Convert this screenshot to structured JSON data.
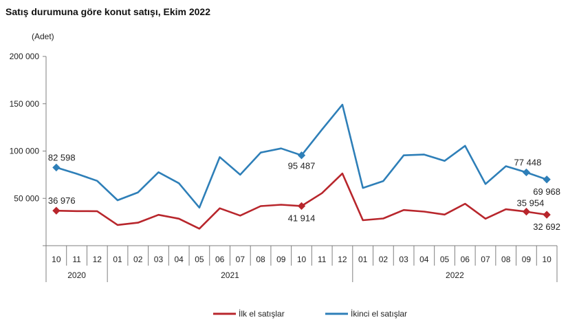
{
  "chart_data": {
    "type": "line",
    "title": "Satış durumuna göre konut satışı, Ekim 2022",
    "ylabel": "(Adet)",
    "xlabel": "",
    "ylim": [
      0,
      200000
    ],
    "y_ticks": [
      0,
      50000,
      100000,
      150000,
      200000
    ],
    "y_tick_labels": [
      "",
      "50 000",
      "100 000",
      "150 000",
      "200 000"
    ],
    "categories": [
      "10",
      "11",
      "12",
      "01",
      "02",
      "03",
      "04",
      "05",
      "06",
      "07",
      "08",
      "09",
      "10",
      "11",
      "12",
      "01",
      "02",
      "03",
      "04",
      "05",
      "06",
      "07",
      "08",
      "09",
      "10"
    ],
    "year_groups": [
      {
        "label": "2020",
        "start": 0,
        "end": 2
      },
      {
        "label": "2021",
        "start": 3,
        "end": 14
      },
      {
        "label": "2022",
        "start": 15,
        "end": 24
      }
    ],
    "grid": false,
    "legend_position": "bottom",
    "series": [
      {
        "name": "İlk el satışlar",
        "color": "#b8262c",
        "values": [
          36976,
          36500,
          36400,
          21900,
          24300,
          32600,
          28500,
          18000,
          39500,
          31800,
          41800,
          43300,
          41914,
          55500,
          76300,
          26900,
          28700,
          37700,
          36000,
          32900,
          44300,
          28500,
          38500,
          35954,
          32692
        ],
        "markers": [
          0,
          12,
          23,
          24
        ],
        "labels": {
          "0": "36 976",
          "12": "41 914",
          "23": "35 954",
          "24": "32 692"
        }
      },
      {
        "name": "İkinci el satışlar",
        "color": "#2e7fb8",
        "values": [
          82598,
          76000,
          68500,
          48000,
          56300,
          77600,
          66000,
          40200,
          93600,
          75000,
          98400,
          102800,
          95487,
          122700,
          149000,
          61000,
          68300,
          95500,
          96300,
          89600,
          105500,
          65200,
          84000,
          77448,
          69968
        ],
        "markers": [
          0,
          12,
          23,
          24
        ],
        "labels": {
          "0": "82 598",
          "12": "95 487",
          "23": "77 448",
          "24": "69 968"
        }
      }
    ]
  }
}
